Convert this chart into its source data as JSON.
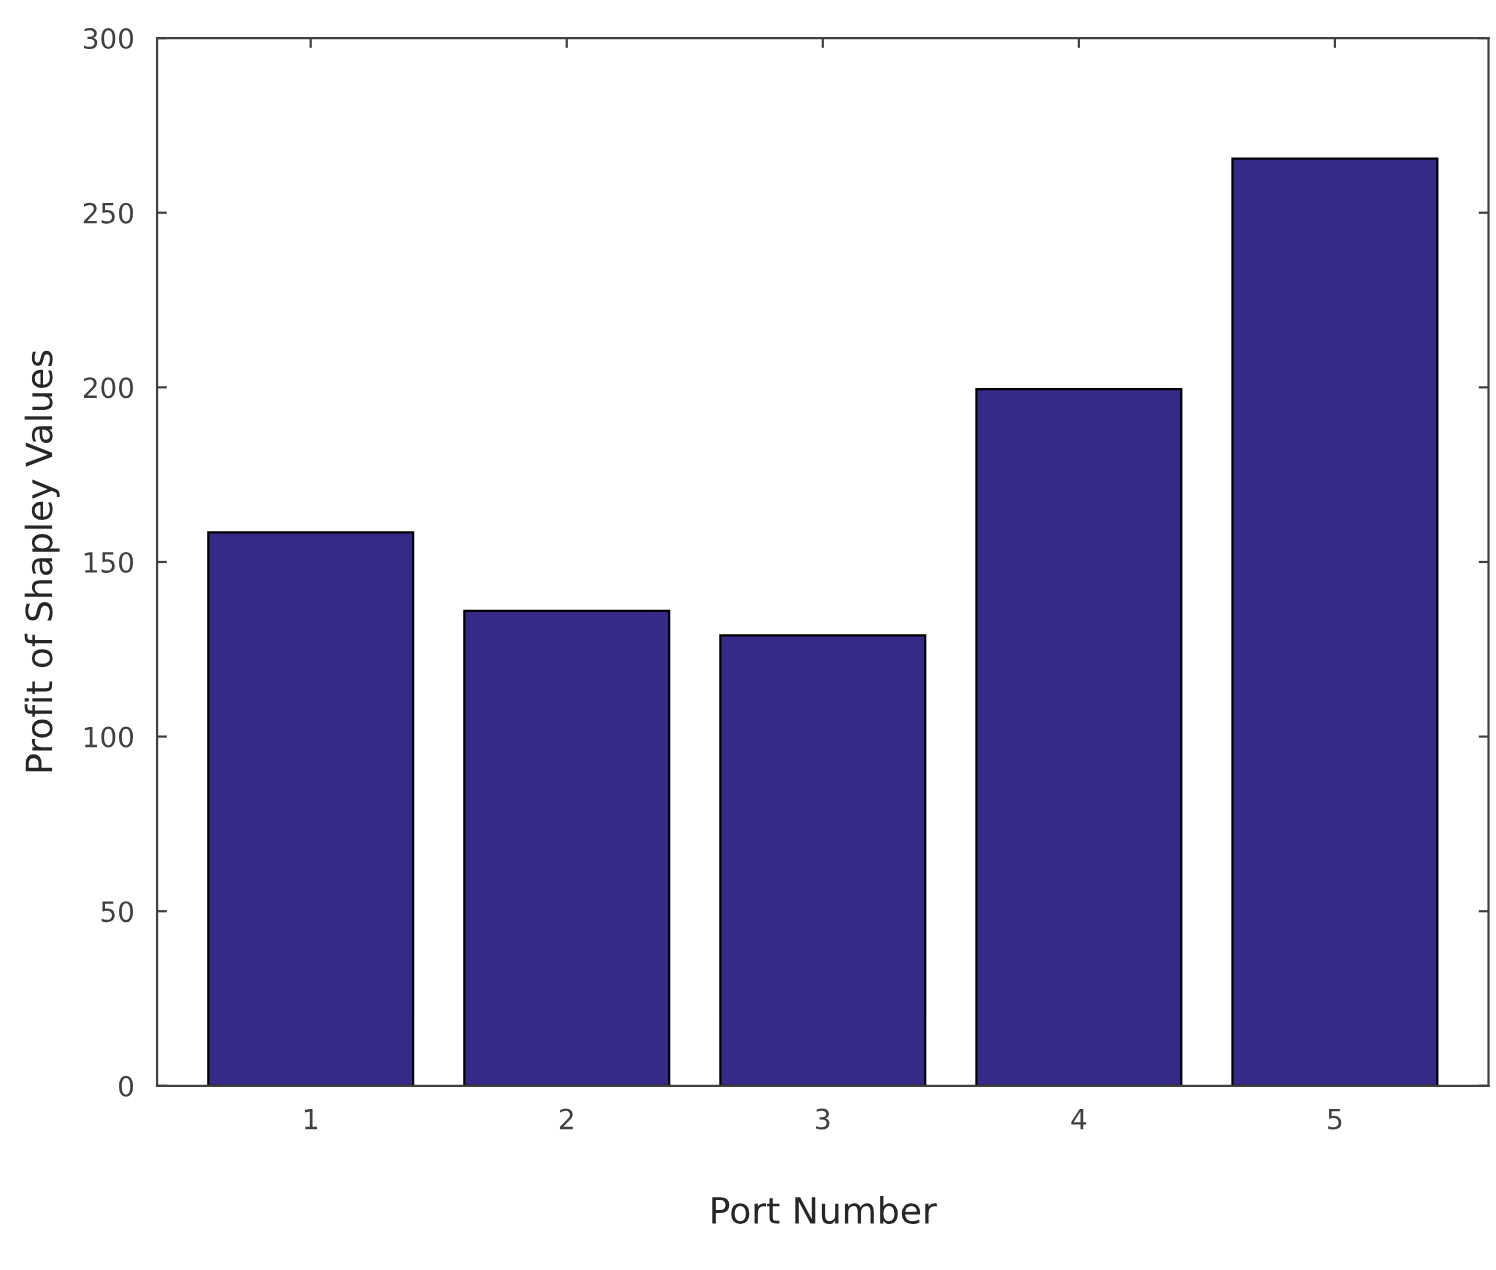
{
  "chart_data": {
    "type": "bar",
    "xlabel": "Port Number",
    "ylabel": "Profit of Shapley Values",
    "categories": [
      "1",
      "2",
      "3",
      "4",
      "5"
    ],
    "values": [
      158.5,
      136,
      129,
      199.5,
      265.5
    ],
    "color": "#352a87",
    "ylim": [
      0,
      300
    ],
    "yticks": [
      0,
      50,
      100,
      150,
      200,
      250,
      300
    ],
    "grid": false
  }
}
